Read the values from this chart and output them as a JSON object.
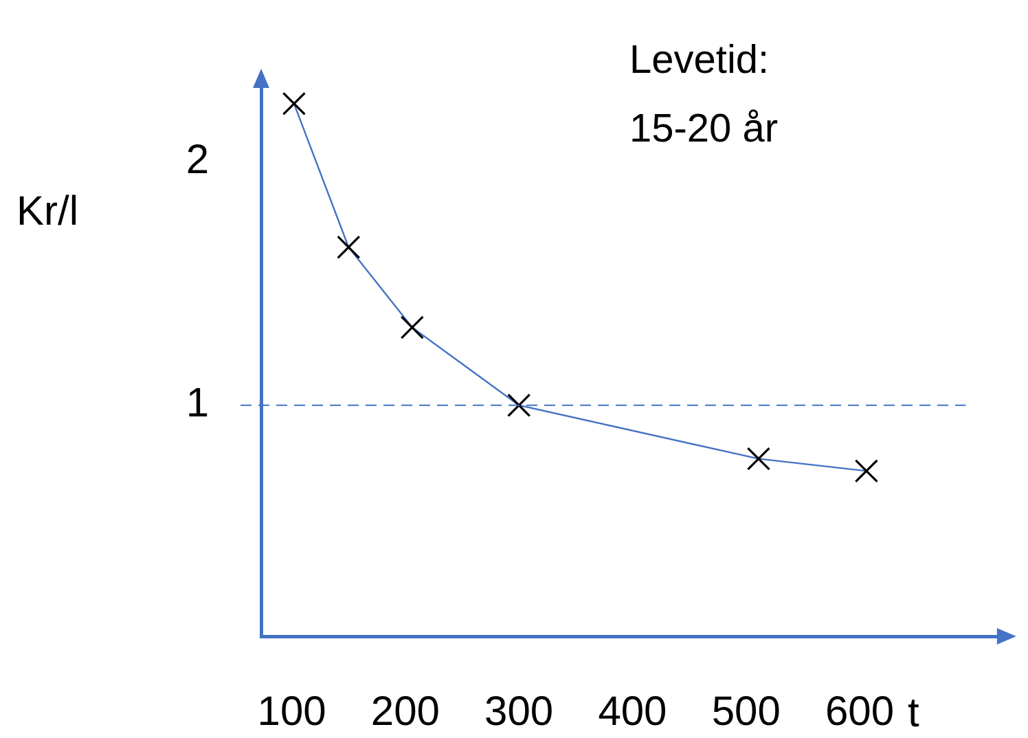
{
  "chart_data": {
    "type": "line",
    "xlabel": "t",
    "ylabel": "Kr/l",
    "x": [
      102,
      150,
      206,
      300,
      511,
      606
    ],
    "series": [
      {
        "color": "#4472c4",
        "values": [
          2.24,
          1.65,
          1.32,
          1.0,
          0.78,
          0.73
        ]
      }
    ],
    "xlim": [
      73,
      733
    ],
    "xticks": [
      100,
      200,
      300,
      400,
      500,
      600
    ],
    "ylim": [
      0.05,
      2.35
    ],
    "yticks": [
      1,
      2
    ],
    "ref_lines": [
      {
        "axis": "y",
        "value": 1,
        "color": "#4472c4",
        "line_style": "dashed"
      }
    ],
    "annotations": [
      "Levetid:\n15-20 år"
    ],
    "marker": "cross",
    "line_style": "solid",
    "grid": false,
    "legend": false
  }
}
